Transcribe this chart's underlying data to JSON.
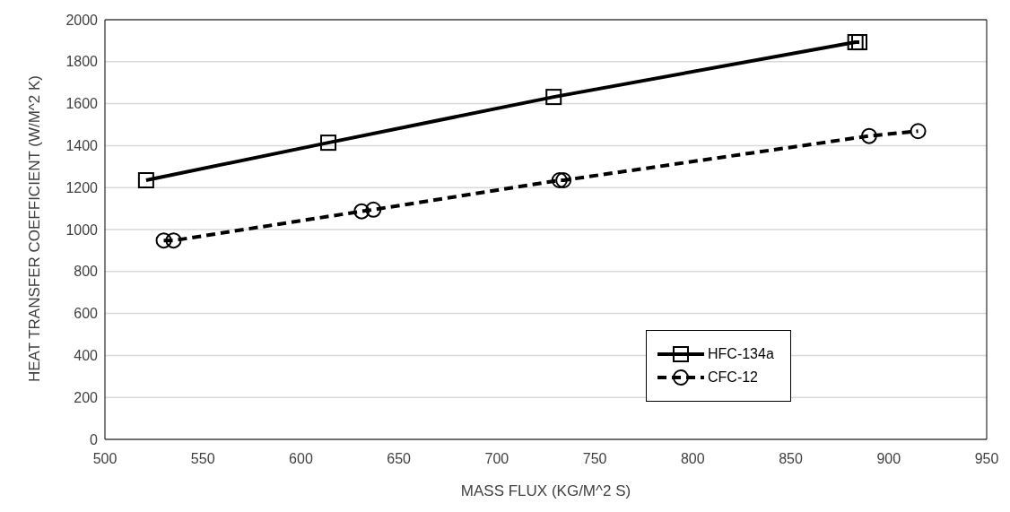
{
  "chart_data": {
    "type": "line",
    "xlabel": "MASS FLUX (KG/M^2 S)",
    "ylabel": "HEAT TRANSFER COEFFICIENT (W/M^2 K)",
    "xlim": [
      500,
      950
    ],
    "xticks": [
      500,
      550,
      600,
      650,
      700,
      750,
      800,
      850,
      900,
      950
    ],
    "ylim": [
      0,
      2000
    ],
    "yticks": [
      0,
      200,
      400,
      600,
      800,
      1000,
      1200,
      1400,
      1600,
      1800,
      2000
    ],
    "grid": "y",
    "legend": "bottom right",
    "series": [
      {
        "name": "HFC-134a",
        "color": "#000000",
        "marker": "square",
        "line_style": "solid",
        "x": [
          521,
          614,
          729,
          883,
          885
        ],
        "values": [
          1235,
          1414,
          1632,
          1893,
          1893
        ]
      },
      {
        "name": "CFC-12",
        "color": "#000000",
        "marker": "circle",
        "line_style": "dashed",
        "x": [
          530,
          535,
          631,
          637,
          732,
          734,
          890,
          915
        ],
        "values": [
          948,
          948,
          1087,
          1095,
          1235,
          1235,
          1446,
          1469
        ]
      }
    ]
  }
}
